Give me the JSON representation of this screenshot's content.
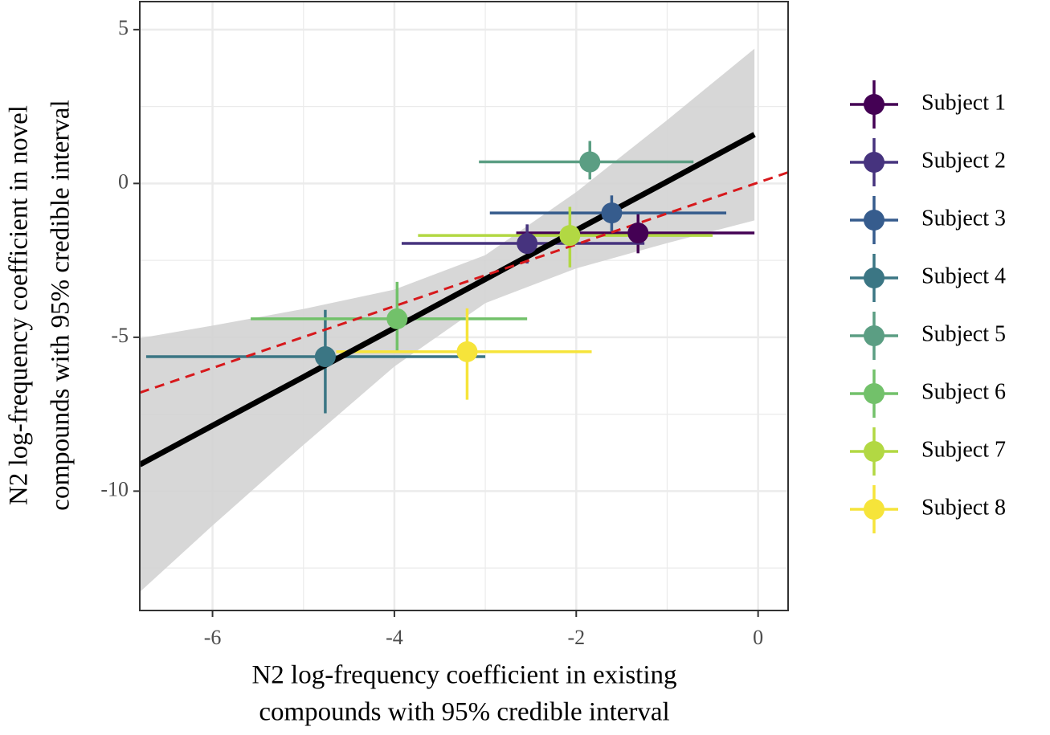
{
  "chart_data": {
    "type": "scatter",
    "xlabel": [
      "N2 log-frequency coefficient in existing",
      "compounds with 95% credible interval"
    ],
    "ylabel": [
      "N2 log-frequency coefficient in novel",
      "compounds with 95% credible interval"
    ],
    "xlim": [
      -6.8,
      0.33
    ],
    "ylim": [
      -13.88,
      5.91
    ],
    "xticks": [
      -6,
      -4,
      -2,
      0
    ],
    "yticks": [
      -10,
      -5,
      0,
      5
    ],
    "grid": true,
    "series": [
      {
        "name": "Subject 1",
        "color": "#440154",
        "x": [
          -1.32
        ],
        "y": [
          -1.61
        ],
        "xmin": [
          -2.66
        ],
        "xmax": [
          -0.04
        ],
        "ymin": [
          -2.27
        ],
        "ymax": [
          -0.94
        ]
      },
      {
        "name": "Subject 2",
        "color": "#46337e",
        "x": [
          -2.54
        ],
        "y": [
          -1.95
        ],
        "xmin": [
          -3.92
        ],
        "xmax": [
          -1.25
        ],
        "ymin": [
          -2.6
        ],
        "ymax": [
          -1.33
        ]
      },
      {
        "name": "Subject 3",
        "color": "#365c8d",
        "x": [
          -1.61
        ],
        "y": [
          -0.96
        ],
        "xmin": [
          -2.95
        ],
        "xmax": [
          -0.35
        ],
        "ymin": [
          -1.56
        ],
        "ymax": [
          -0.39
        ]
      },
      {
        "name": "Subject 4",
        "color": "#3b7684",
        "x": [
          -4.76
        ],
        "y": [
          -5.63
        ],
        "xmin": [
          -6.73
        ],
        "xmax": [
          -3.0
        ],
        "ymin": [
          -7.47
        ],
        "ymax": [
          -4.11
        ]
      },
      {
        "name": "Subject 5",
        "color": "#5b9e83",
        "x": [
          -1.85
        ],
        "y": [
          0.7
        ],
        "xmin": [
          -3.07
        ],
        "xmax": [
          -0.71
        ],
        "ymin": [
          0.13
        ],
        "ymax": [
          1.38
        ]
      },
      {
        "name": "Subject 6",
        "color": "#72c16a",
        "x": [
          -3.97
        ],
        "y": [
          -4.4
        ],
        "xmin": [
          -5.58
        ],
        "xmax": [
          -2.54
        ],
        "ymin": [
          -5.47
        ],
        "ymax": [
          -3.2
        ]
      },
      {
        "name": "Subject 7",
        "color": "#b2d843",
        "x": [
          -2.07
        ],
        "y": [
          -1.69
        ],
        "xmin": [
          -3.74
        ],
        "xmax": [
          -0.5
        ],
        "ymin": [
          -2.73
        ],
        "ymax": [
          -0.76
        ]
      },
      {
        "name": "Subject 8",
        "color": "#f6e43a",
        "x": [
          -3.2
        ],
        "y": [
          -5.47
        ],
        "xmin": [
          -4.64
        ],
        "xmax": [
          -1.83
        ],
        "ymin": [
          -7.03
        ],
        "ymax": [
          -4.06
        ]
      }
    ],
    "fit": {
      "color": "#000000",
      "band_color": "#d3d3d3",
      "x": [
        -6.8,
        -6,
        -5,
        -4,
        -3,
        -2,
        -1,
        -0.04
      ],
      "y": [
        -9.14,
        -7.87,
        -6.29,
        -4.7,
        -3.11,
        -1.52,
        0.06,
        1.59
      ],
      "lower": [
        -13.28,
        -11.12,
        -8.5,
        -5.95,
        -3.89,
        -2.76,
        -1.94,
        -1.2
      ],
      "upper": [
        -5.03,
        -4.62,
        -4.08,
        -3.45,
        -2.33,
        -0.28,
        2.06,
        4.38
      ]
    },
    "reference": {
      "color": "#d7191c",
      "x": [
        -6.8,
        0.33
      ],
      "y": [
        -6.8,
        0.36
      ]
    }
  }
}
